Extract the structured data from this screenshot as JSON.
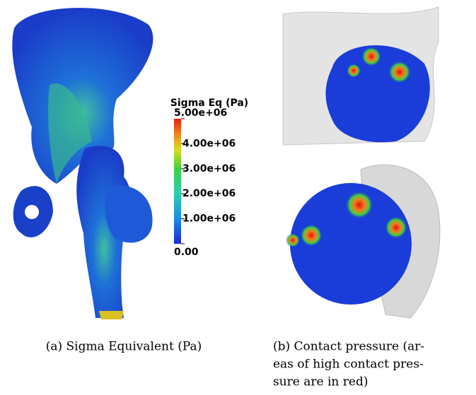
{
  "figure": {
    "colorbar": {
      "title": "Sigma Eq (Pa)",
      "range": [
        0,
        5000000
      ],
      "ticks": [
        {
          "value": 5000000,
          "label": "5.00e+06"
        },
        {
          "value": 4000000,
          "label": "4.00e+06"
        },
        {
          "value": 3000000,
          "label": "3.00e+06"
        },
        {
          "value": 2000000,
          "label": "2.00e+06"
        },
        {
          "value": 1000000,
          "label": "1.00e+06"
        },
        {
          "value": 0,
          "label": "0.00"
        }
      ]
    },
    "captions": [
      {
        "lines": [
          "(a) Sigma Equivalent (Pa)"
        ]
      },
      {
        "lines": [
          "(b) Contact pressure (ar-",
          "eas of high contact pres-",
          "sure are in red)"
        ]
      }
    ]
  }
}
